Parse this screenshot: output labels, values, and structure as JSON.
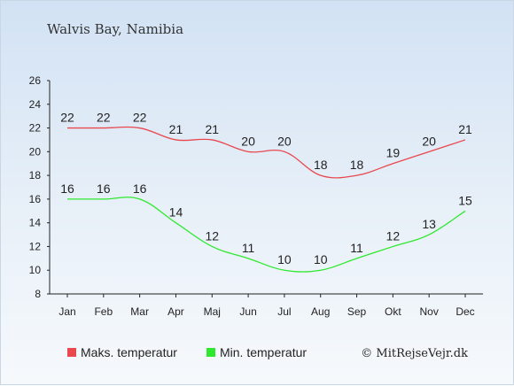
{
  "chart_data": {
    "type": "line",
    "title": "Walvis Bay, Namibia",
    "categories": [
      "Jan",
      "Feb",
      "Mar",
      "Apr",
      "Maj",
      "Jun",
      "Jul",
      "Aug",
      "Sep",
      "Okt",
      "Nov",
      "Dec"
    ],
    "series": [
      {
        "name": "Maks. temperatur",
        "color": "#e8484e",
        "values": [
          22,
          22,
          22,
          21,
          21,
          20,
          20,
          18,
          18,
          19,
          20,
          21
        ]
      },
      {
        "name": "Min. temperatur",
        "color": "#2ee82e",
        "values": [
          16,
          16,
          16,
          14,
          12,
          11,
          10,
          10,
          11,
          12,
          13,
          15
        ]
      }
    ],
    "ylim": [
      8,
      26
    ],
    "yticks": [
      8,
      10,
      12,
      14,
      16,
      18,
      20,
      22,
      24,
      26
    ],
    "legend_position": "bottom",
    "grid": false
  },
  "credit": "© MitRejseVejr.dk"
}
